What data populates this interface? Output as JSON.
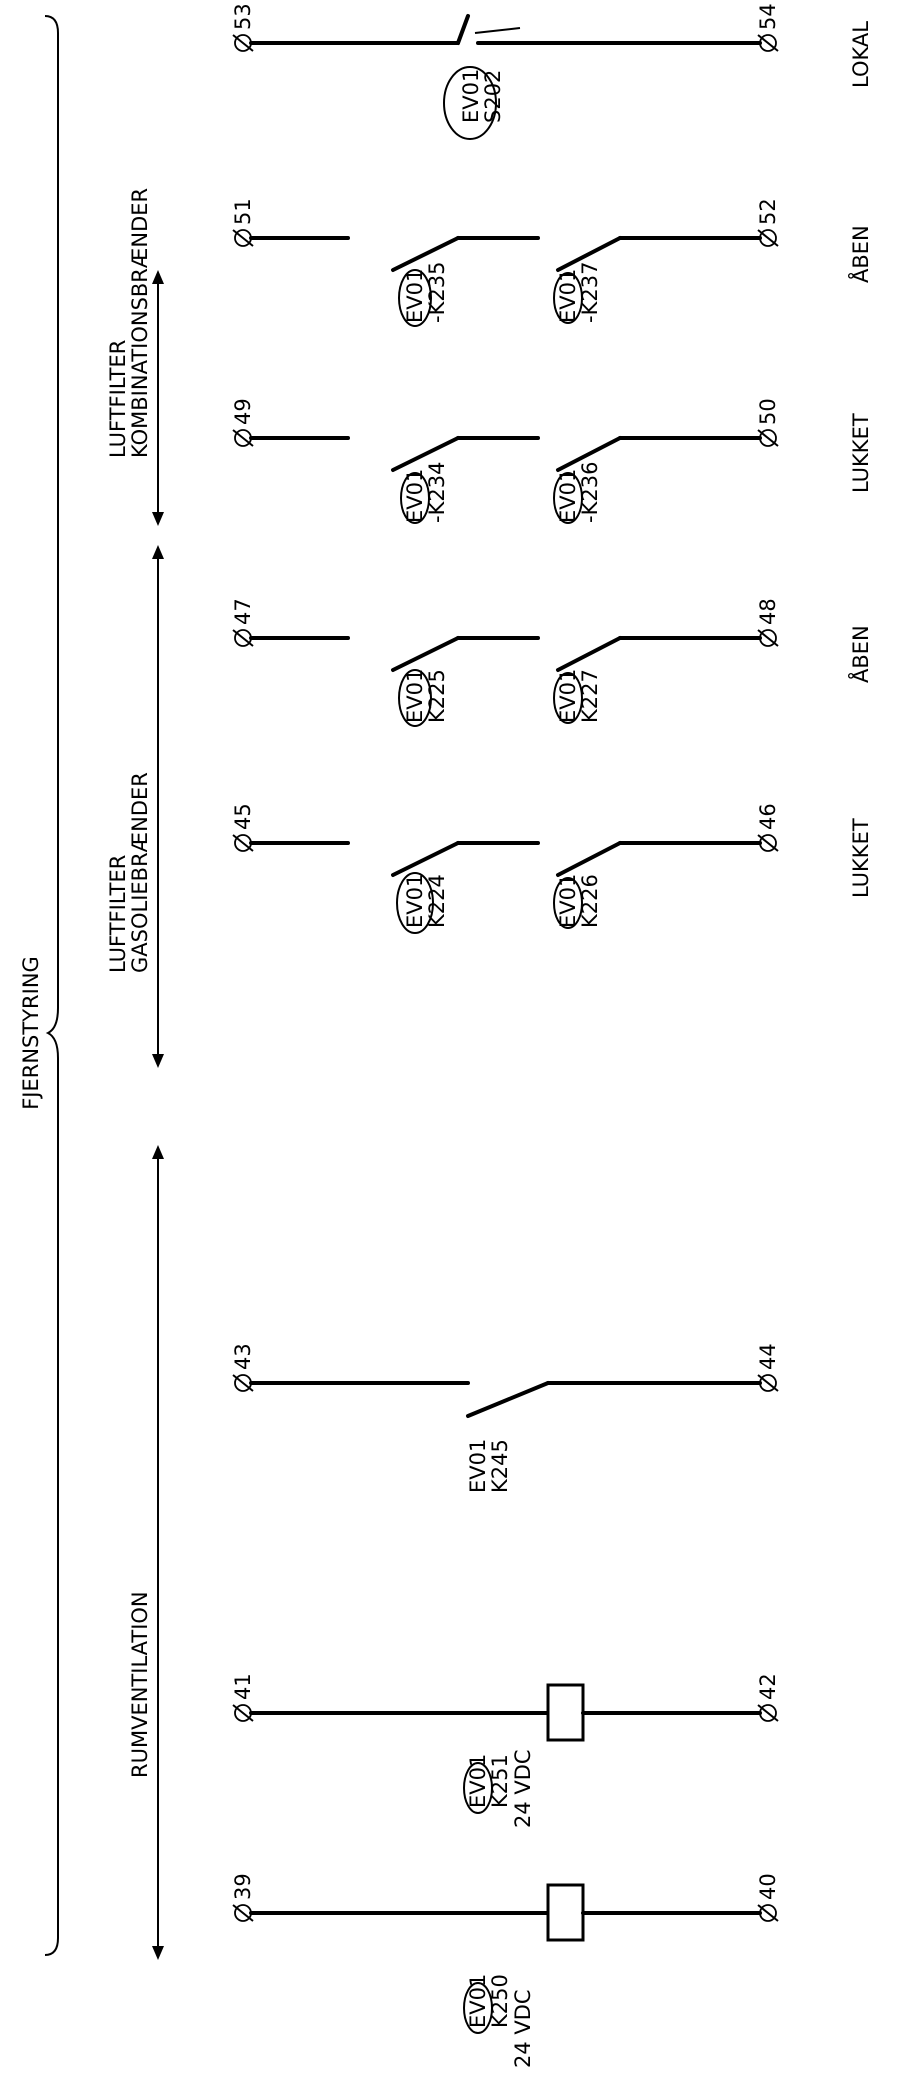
{
  "group": {
    "title": "FJERNSTYRING"
  },
  "sections": {
    "room_ventilation": "RUMVENTILATION",
    "gas_oil_line1": "LUFTFILTER",
    "gas_oil_line2": "GASOLIEBRÆNDER",
    "combi_line1": "LUFTFILTER",
    "combi_line2": "KOMBINATIONSBRÆNDER"
  },
  "circuits": [
    {
      "id": "c39",
      "top_terminal": "39",
      "bottom_terminal": "40",
      "component": [
        "EV01",
        "K250"
      ],
      "extra": "24 VDC",
      "status": ""
    },
    {
      "id": "c41",
      "top_terminal": "41",
      "bottom_terminal": "42",
      "component": [
        "EV01",
        "K251"
      ],
      "extra": "24 VDC",
      "status": ""
    },
    {
      "id": "c43",
      "top_terminal": "43",
      "bottom_terminal": "44",
      "component": [
        "EV01",
        "K245"
      ],
      "extra": "",
      "status": ""
    },
    {
      "id": "c45",
      "top_terminal": "45",
      "bottom_terminal": "46",
      "component_a": [
        "EV01",
        "K224"
      ],
      "component_b": [
        "EV01",
        "K226"
      ],
      "status": "LUKKET"
    },
    {
      "id": "c47",
      "top_terminal": "47",
      "bottom_terminal": "48",
      "component_a": [
        "EV01",
        "K225"
      ],
      "component_b": [
        "EV01",
        "K227"
      ],
      "status": "ÅBEN"
    },
    {
      "id": "c49",
      "top_terminal": "49",
      "bottom_terminal": "50",
      "component_a": [
        "EV01",
        "-K234"
      ],
      "component_b": [
        "EV01",
        "-K236"
      ],
      "status": "LUKKET"
    },
    {
      "id": "c51",
      "top_terminal": "51",
      "bottom_terminal": "52",
      "component_a": [
        "EV01",
        "-K235"
      ],
      "component_b": [
        "EV01",
        "-K237"
      ],
      "status": "ÅBEN"
    },
    {
      "id": "c53",
      "top_terminal": "53",
      "bottom_terminal": "54",
      "component": [
        "EV01",
        "S202"
      ],
      "status": "LOKAL"
    }
  ],
  "terminal_symbol": "Ø"
}
